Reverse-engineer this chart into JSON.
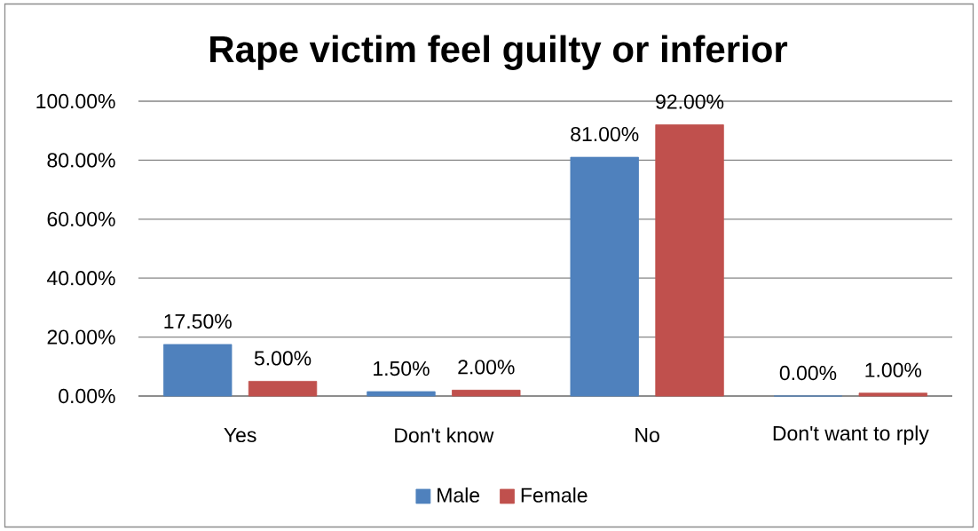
{
  "chart_data": {
    "type": "bar",
    "title": "Rape victim feel guilty or inferior",
    "categories": [
      "Yes",
      "Don't know",
      "No",
      "Don't want to rply"
    ],
    "series": [
      {
        "name": "Male",
        "color": "#4f81bd",
        "values": [
          17.5,
          1.5,
          81,
          0
        ],
        "value_labels": [
          "17.50%",
          "1.50%",
          "81.00%",
          "0.00%"
        ]
      },
      {
        "name": "Female",
        "color": "#c0504d",
        "values": [
          5,
          2,
          92,
          1
        ],
        "value_labels": [
          "5.00%",
          "2.00%",
          "92.00%",
          "1.00%"
        ]
      }
    ],
    "ylim": [
      0,
      100
    ],
    "yticks": [
      {
        "value": 0,
        "label": "0.00%"
      },
      {
        "value": 20,
        "label": "20.00%"
      },
      {
        "value": 40,
        "label": "40.00%"
      },
      {
        "value": 60,
        "label": "60.00%"
      },
      {
        "value": 80,
        "label": "80.00%"
      },
      {
        "value": 100,
        "label": "100.00%"
      }
    ],
    "grid": "y",
    "legend": "bottom"
  }
}
